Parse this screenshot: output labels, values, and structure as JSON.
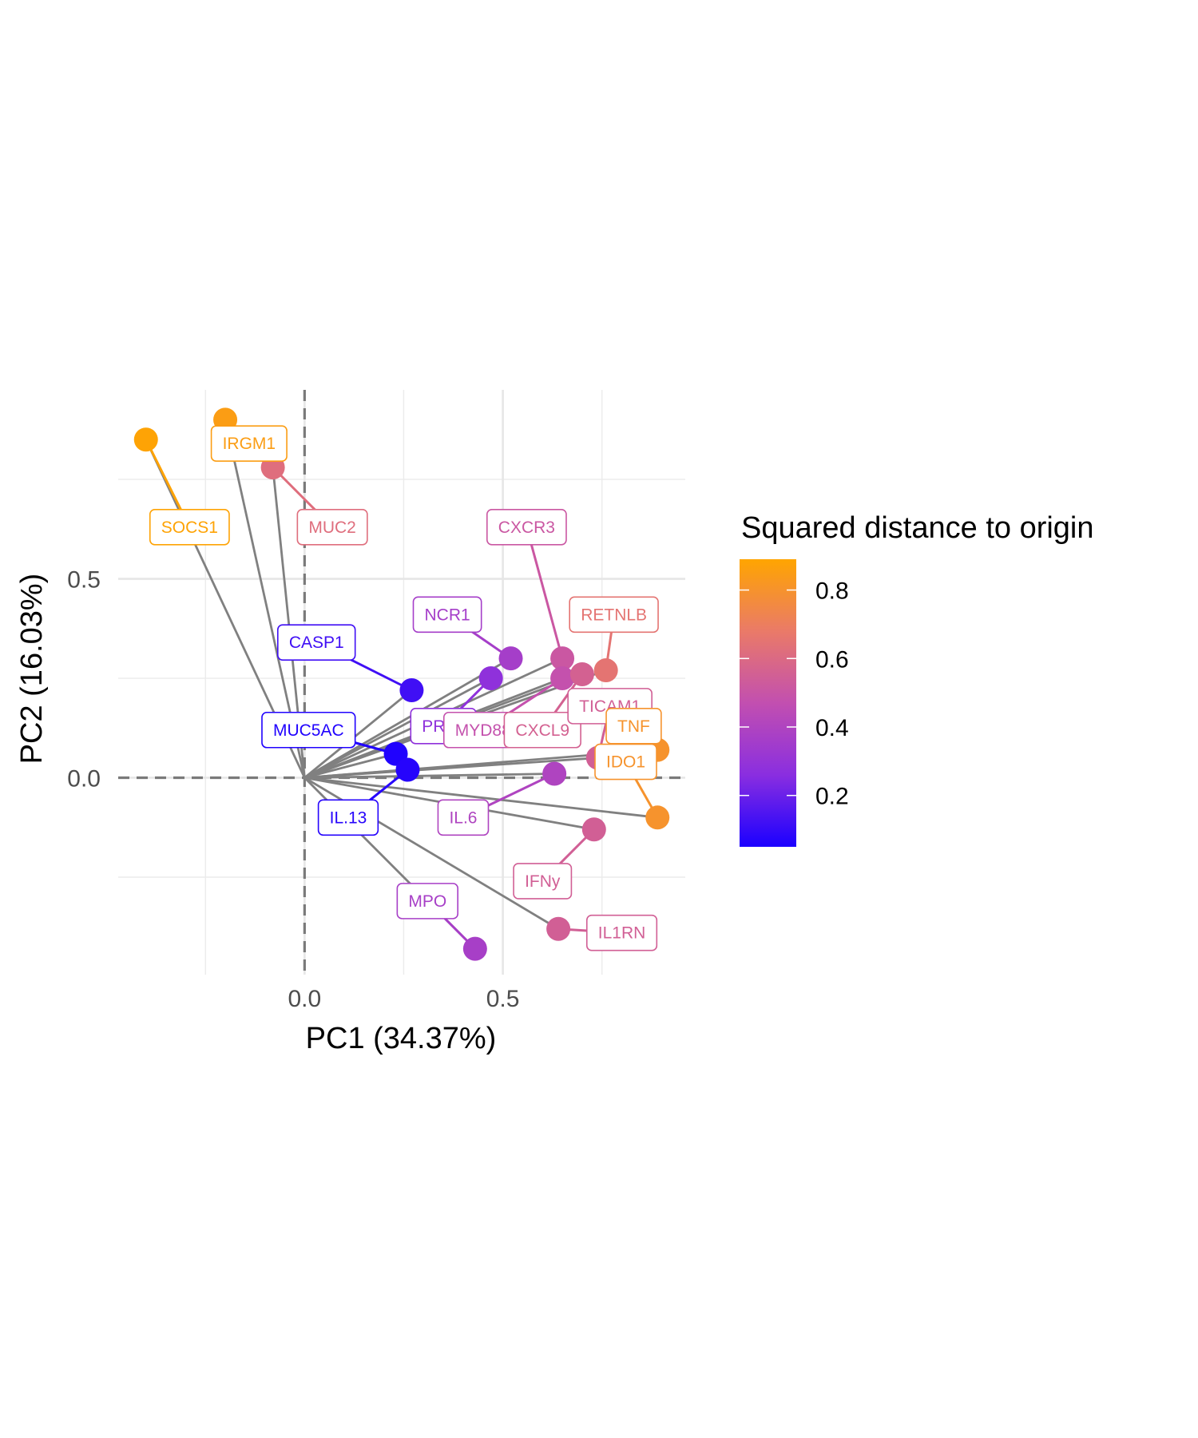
{
  "chart_data": {
    "type": "scatter",
    "title": "",
    "xlabel": "PC1 (34.37%)",
    "ylabel": "PC2 (16.03%)",
    "xlim": [
      -0.47,
      0.96
    ],
    "ylim": [
      -0.495,
      0.975
    ],
    "xticks": [
      {
        "value": 0.0,
        "label": "0.0"
      },
      {
        "value": 0.5,
        "label": "0.5"
      }
    ],
    "yticks": [
      {
        "value": 0.0,
        "label": "0.0"
      },
      {
        "value": 0.5,
        "label": "0.5"
      }
    ],
    "grid": true,
    "reference_lines": {
      "x": 0,
      "y": 0,
      "style": "dashed"
    },
    "legend": {
      "title": "Squared distance to origin",
      "placement": "right",
      "type": "colorbar",
      "min": 0.05,
      "max": 0.89,
      "ticks": [
        {
          "value": 0.2,
          "label": "0.2"
        },
        {
          "value": 0.4,
          "label": "0.4"
        },
        {
          "value": 0.6,
          "label": "0.6"
        },
        {
          "value": 0.8,
          "label": "0.8"
        }
      ],
      "colors": [
        "#1b00ff",
        "#8a2ee0",
        "#c24fb0",
        "#ea7a68",
        "#ffa500"
      ]
    },
    "points": [
      {
        "label": "SOCS1",
        "x": -0.4,
        "y": 0.85,
        "sq_dist": 0.88,
        "label_pos": [
          -0.29,
          0.63
        ]
      },
      {
        "label": "IRGM1",
        "x": -0.2,
        "y": 0.9,
        "sq_dist": 0.85,
        "label_pos": [
          -0.14,
          0.84
        ]
      },
      {
        "label": "MUC2",
        "x": -0.08,
        "y": 0.78,
        "sq_dist": 0.62,
        "label_pos": [
          0.07,
          0.63
        ]
      },
      {
        "label": "CXCR3",
        "x": 0.65,
        "y": 0.3,
        "sq_dist": 0.51,
        "label_pos": [
          0.56,
          0.63
        ]
      },
      {
        "label": "RETNLB",
        "x": 0.76,
        "y": 0.27,
        "sq_dist": 0.65,
        "label_pos": [
          0.78,
          0.41
        ]
      },
      {
        "label": "NCR1",
        "x": 0.52,
        "y": 0.3,
        "sq_dist": 0.36,
        "label_pos": [
          0.36,
          0.41
        ]
      },
      {
        "label": "CASP1",
        "x": 0.27,
        "y": 0.22,
        "sq_dist": 0.12,
        "label_pos": [
          0.03,
          0.34
        ]
      },
      {
        "label": "PRF1",
        "x": 0.47,
        "y": 0.25,
        "sq_dist": 0.28,
        "label_pos": [
          0.35,
          0.13
        ]
      },
      {
        "label": "MYD88",
        "x": 0.65,
        "y": 0.25,
        "sq_dist": 0.48,
        "label_pos": [
          0.45,
          0.12
        ]
      },
      {
        "label": "CXCL9",
        "x": 0.7,
        "y": 0.26,
        "sq_dist": 0.56,
        "label_pos": [
          0.6,
          0.12
        ]
      },
      {
        "label": "TICAM1",
        "x": 0.74,
        "y": 0.05,
        "sq_dist": 0.55,
        "label_pos": [
          0.77,
          0.18
        ]
      },
      {
        "label": "TNF",
        "x": 0.89,
        "y": 0.07,
        "sq_dist": 0.8,
        "label_pos": [
          0.83,
          0.13
        ]
      },
      {
        "label": "MUC5AC",
        "x": 0.23,
        "y": 0.06,
        "sq_dist": 0.06,
        "label_pos": [
          0.01,
          0.12
        ]
      },
      {
        "label": "IL.13",
        "x": 0.26,
        "y": 0.02,
        "sq_dist": 0.07,
        "label_pos": [
          0.11,
          -0.1
        ]
      },
      {
        "label": "IL.6",
        "x": 0.63,
        "y": 0.01,
        "sq_dist": 0.4,
        "label_pos": [
          0.4,
          -0.1
        ]
      },
      {
        "label": "IDO1",
        "x": 0.89,
        "y": -0.1,
        "sq_dist": 0.8,
        "label_pos": [
          0.81,
          0.04
        ]
      },
      {
        "label": "IFNy",
        "x": 0.73,
        "y": -0.13,
        "sq_dist": 0.55,
        "label_pos": [
          0.6,
          -0.26
        ]
      },
      {
        "label": "IL1RN",
        "x": 0.64,
        "y": -0.38,
        "sq_dist": 0.55,
        "label_pos": [
          0.8,
          -0.39
        ]
      },
      {
        "label": "MPO",
        "x": 0.43,
        "y": -0.43,
        "sq_dist": 0.37,
        "label_pos": [
          0.31,
          -0.31
        ]
      }
    ]
  }
}
